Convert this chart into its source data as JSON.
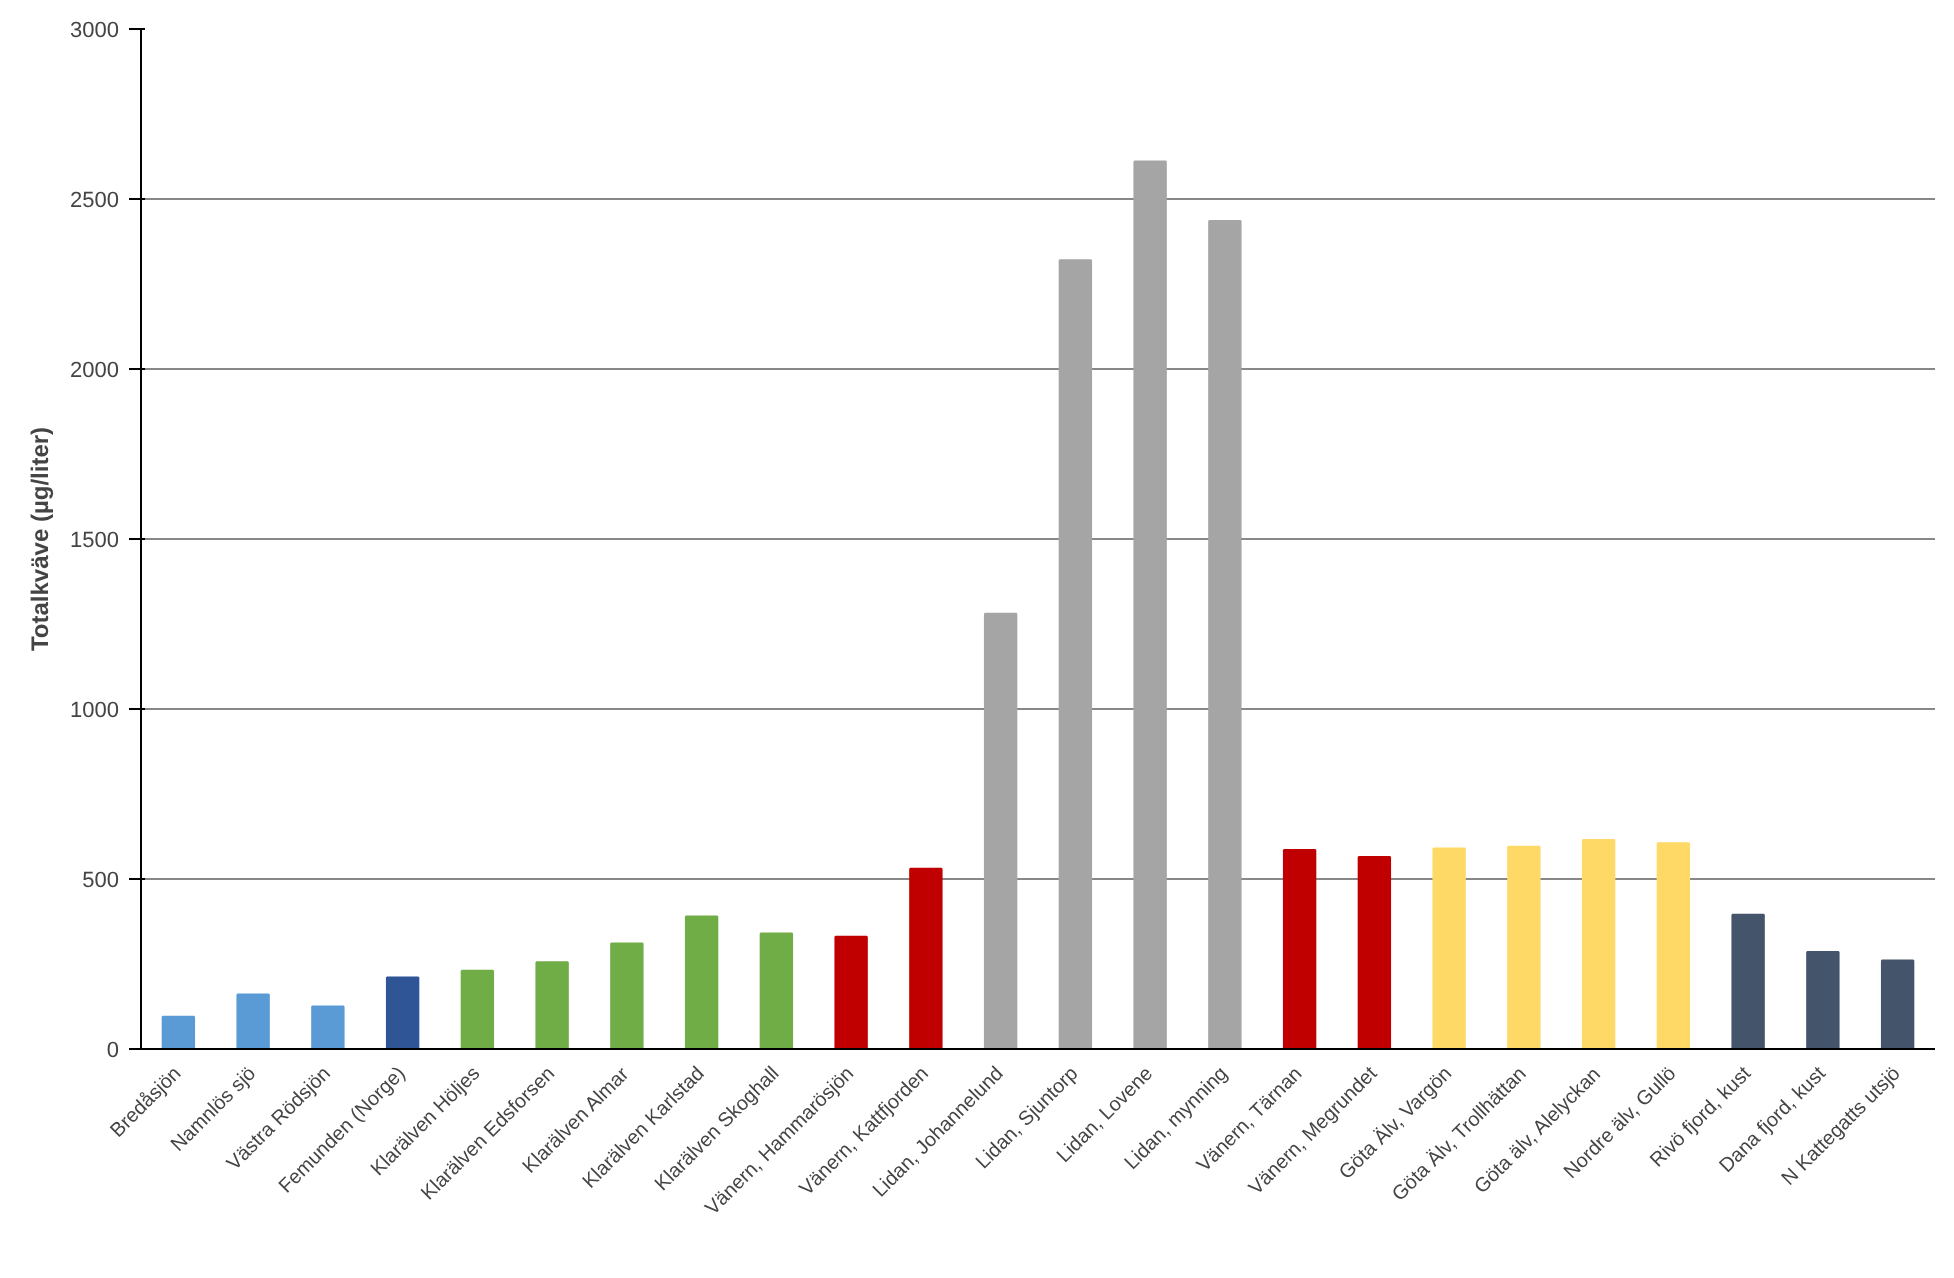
{
  "chart_data": {
    "type": "bar",
    "ylabel": "Totalkväve (µg/liter)",
    "categories": [
      "Bredåsjön",
      "Namnlös sjö",
      "Västra Rödsjön",
      "Femunden (Norge)",
      "Klarälven Höljes",
      "Klarälven Edsforsen",
      "Klarälven Almar",
      "Klarälven Karlstad",
      "Klarälven Skoghall",
      "Vänern, Hammarösjön",
      "Vänern, Kattfjorden",
      "Lidan, Johannelund",
      "Lidan, Sjuntorp",
      "Lidan, Lovene",
      "Lidan, mynning",
      "Vänern, Tärnan",
      "Vänern, Megrundet",
      "Göta Älv, Vargön",
      "Göta Älv, Trollhättan",
      "Göta älv, Alelyckan",
      "Nordre älv, Gullö",
      "Rivö fjord, kust",
      "Dana fjord, kust",
      "N Kattegatts utsjö"
    ],
    "values": [
      95,
      160,
      125,
      210,
      230,
      255,
      310,
      390,
      340,
      330,
      530,
      1280,
      2320,
      2610,
      2435,
      585,
      565,
      590,
      595,
      615,
      605,
      395,
      285,
      260
    ],
    "colors": [
      "#5b9bd5",
      "#5b9bd5",
      "#5b9bd5",
      "#2f5597",
      "#70ad47",
      "#70ad47",
      "#70ad47",
      "#70ad47",
      "#70ad47",
      "#c00000",
      "#c00000",
      "#a5a5a5",
      "#a5a5a5",
      "#a5a5a5",
      "#a5a5a5",
      "#c00000",
      "#c00000",
      "#ffd966",
      "#ffd966",
      "#ffd966",
      "#ffd966",
      "#44546a",
      "#44546a",
      "#44546a"
    ],
    "ylim": [
      0,
      3000
    ],
    "yticks": [
      0,
      500,
      1000,
      1500,
      2000,
      2500,
      3000
    ],
    "grid": "y"
  }
}
